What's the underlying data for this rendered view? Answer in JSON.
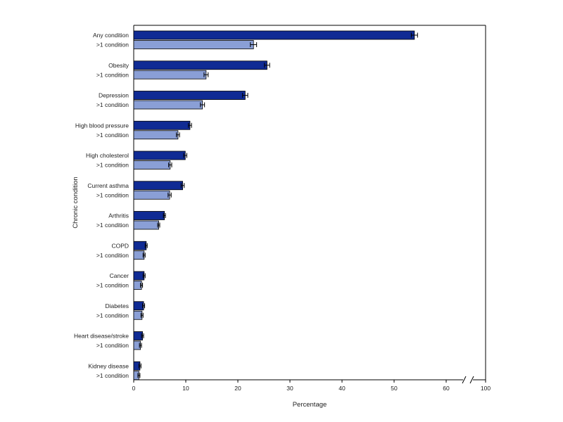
{
  "chart_data": {
    "type": "bar",
    "orientation": "horizontal",
    "xlabel": "Percentage",
    "ylabel": "Chronic condition",
    "xlim": [
      0,
      100
    ],
    "xticks": [
      0,
      10,
      20,
      30,
      40,
      50,
      60,
      100
    ],
    "axis_break": [
      65,
      95
    ],
    "grid": false,
    "legend": "none",
    "colors": {
      "primary": "#102b94",
      "secondary": "#8a9fd6",
      "stroke": "#000000"
    },
    "rows": [
      {
        "label": "Any condition",
        "value": 53.9,
        "ci": [
          53.3,
          54.5
        ],
        "kind": "primary"
      },
      {
        "label": ">1 condition",
        "value": 23.0,
        "ci": [
          22.4,
          23.6
        ],
        "kind": "secondary"
      },
      {
        "label": "Obesity",
        "value": 25.6,
        "ci": [
          25.1,
          26.1
        ],
        "kind": "primary"
      },
      {
        "label": ">1 condition",
        "value": 13.9,
        "ci": [
          13.5,
          14.3
        ],
        "kind": "secondary"
      },
      {
        "label": "Depression",
        "value": 21.4,
        "ci": [
          20.9,
          21.9
        ],
        "kind": "primary"
      },
      {
        "label": ">1 condition",
        "value": 13.2,
        "ci": [
          12.8,
          13.6
        ],
        "kind": "secondary"
      },
      {
        "label": "High blood pressure",
        "value": 10.8,
        "ci": [
          10.5,
          11.1
        ],
        "kind": "primary"
      },
      {
        "label": ">1 condition",
        "value": 8.5,
        "ci": [
          8.2,
          8.8
        ],
        "kind": "secondary"
      },
      {
        "label": "High cholesterol",
        "value": 9.9,
        "ci": [
          9.6,
          10.2
        ],
        "kind": "primary"
      },
      {
        "label": ">1 condition",
        "value": 7.0,
        "ci": [
          6.7,
          7.3
        ],
        "kind": "secondary"
      },
      {
        "label": "Current asthma",
        "value": 9.4,
        "ci": [
          9.1,
          9.7
        ],
        "kind": "primary"
      },
      {
        "label": ">1 condition",
        "value": 6.9,
        "ci": [
          6.6,
          7.2
        ],
        "kind": "secondary"
      },
      {
        "label": "Arthritis",
        "value": 5.9,
        "ci": [
          5.7,
          6.1
        ],
        "kind": "primary"
      },
      {
        "label": ">1 condition",
        "value": 4.8,
        "ci": [
          4.6,
          5.0
        ],
        "kind": "secondary"
      },
      {
        "label": "COPD",
        "value": 2.4,
        "ci": [
          2.2,
          2.6
        ],
        "kind": "primary"
      },
      {
        "label": ">1 condition",
        "value": 2.0,
        "ci": [
          1.8,
          2.2
        ],
        "kind": "secondary"
      },
      {
        "label": "Cancer",
        "value": 2.0,
        "ci": [
          1.8,
          2.2
        ],
        "kind": "primary"
      },
      {
        "label": ">1 condition",
        "value": 1.5,
        "ci": [
          1.3,
          1.7
        ],
        "kind": "secondary"
      },
      {
        "label": "Diabetes",
        "value": 1.9,
        "ci": [
          1.7,
          2.1
        ],
        "kind": "primary"
      },
      {
        "label": ">1 condition",
        "value": 1.6,
        "ci": [
          1.4,
          1.8
        ],
        "kind": "secondary"
      },
      {
        "label": "Heart disease/stroke",
        "value": 1.7,
        "ci": [
          1.5,
          1.9
        ],
        "kind": "primary"
      },
      {
        "label": ">1 condition",
        "value": 1.3,
        "ci": [
          1.1,
          1.5
        ],
        "kind": "secondary"
      },
      {
        "label": "Kidney disease",
        "value": 1.2,
        "ci": [
          1.0,
          1.4
        ],
        "kind": "primary"
      },
      {
        "label": ">1 condition",
        "value": 1.0,
        "ci": [
          0.8,
          1.2
        ],
        "kind": "secondary"
      }
    ]
  }
}
